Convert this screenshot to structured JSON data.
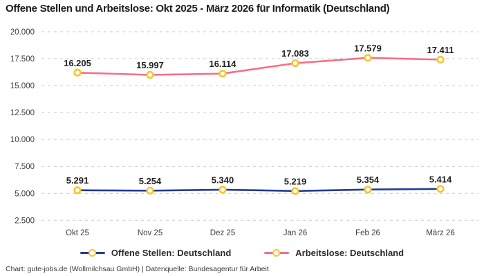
{
  "title": "Offene Stellen und Arbeitslose: Okt 2025 - März 2026 für Informatik (Deutschland)",
  "footer": "Chart: gute-jobs.de (Wollmilchsau GmbH) | Datenquelle: Bundesagentur für Arbeit",
  "colors": {
    "open_positions_line": "#233a97",
    "unemployed_line": "#f76e85",
    "marker_ring": "#fcc32d",
    "marker_fill": "#ffffff",
    "gridline": "#c9c9c9",
    "tick_label": "#3c3c3c",
    "value_label": "#1f1f1f"
  },
  "chart_data": {
    "type": "line",
    "title": "Offene Stellen und Arbeitslose: Okt 2025 - März 2026 für Informatik (Deutschland)",
    "categories": [
      "Okt 25",
      "Nov 25",
      "Dez 25",
      "Jan 26",
      "Feb 26",
      "März 26"
    ],
    "series": [
      {
        "name": "Offene Stellen: Deutschland",
        "color": "#233a97",
        "values": [
          5291,
          5254,
          5340,
          5219,
          5354,
          5414
        ],
        "value_labels": [
          "5.291",
          "5.254",
          "5.340",
          "5.219",
          "5.354",
          "5.414"
        ]
      },
      {
        "name": "Arbeitslose: Deutschland",
        "color": "#f76e85",
        "values": [
          16205,
          15997,
          16114,
          17083,
          17579,
          17411
        ],
        "value_labels": [
          "16.205",
          "15.997",
          "16.114",
          "17.083",
          "17.579",
          "17.411"
        ]
      }
    ],
    "y_tick_values": [
      20000,
      17500,
      15000,
      12500,
      10000,
      7500,
      5000,
      2500
    ],
    "y_tick_labels": [
      "20.000",
      "17.500",
      "15.000",
      "12.500",
      "10.000",
      "7.500",
      "5.000",
      "2.500"
    ],
    "ylim": [
      2500,
      20000
    ],
    "xlabel": "",
    "ylabel": "",
    "grid": "horizontal-dashed",
    "legend_position": "bottom",
    "marker": "ring"
  }
}
